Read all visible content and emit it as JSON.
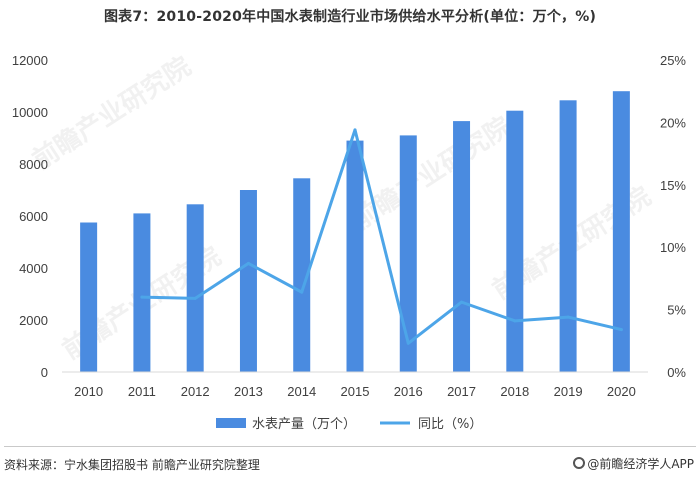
{
  "title": "图表7：2010-2020年中国水表制造行业市场供给水平分析(单位：万个，%)",
  "watermark": "前瞻产业研究院",
  "footer": {
    "source": "资料来源：宁水集团招股书 前瞻产业研究院整理",
    "brand": "@前瞻经济学人APP"
  },
  "colors": {
    "bar": "#4a8be0",
    "line": "#4da5e8",
    "axis": "#d9d9d9"
  },
  "chart_data": {
    "type": "bar+line",
    "categories": [
      "2010",
      "2011",
      "2012",
      "2013",
      "2014",
      "2015",
      "2016",
      "2017",
      "2018",
      "2019",
      "2020"
    ],
    "series": [
      {
        "name": "水表产量（万个）",
        "type": "bar",
        "axis": "left",
        "values": [
          5750,
          6100,
          6450,
          7000,
          7450,
          8900,
          9100,
          9650,
          10050,
          10450,
          10800
        ]
      },
      {
        "name": "同比（%）",
        "type": "line",
        "axis": "right",
        "values": [
          null,
          6.0,
          5.9,
          8.7,
          6.4,
          19.4,
          2.3,
          5.6,
          4.1,
          4.4,
          3.4
        ]
      }
    ],
    "y_left": {
      "min": 0,
      "max": 12000,
      "ticks": [
        "0",
        "2000",
        "4000",
        "6000",
        "8000",
        "10000",
        "12000"
      ]
    },
    "y_right": {
      "min": 0,
      "max": 25,
      "ticks": [
        "0%",
        "5%",
        "10%",
        "15%",
        "20%",
        "25%"
      ]
    },
    "grid": false,
    "legend_position": "bottom"
  }
}
